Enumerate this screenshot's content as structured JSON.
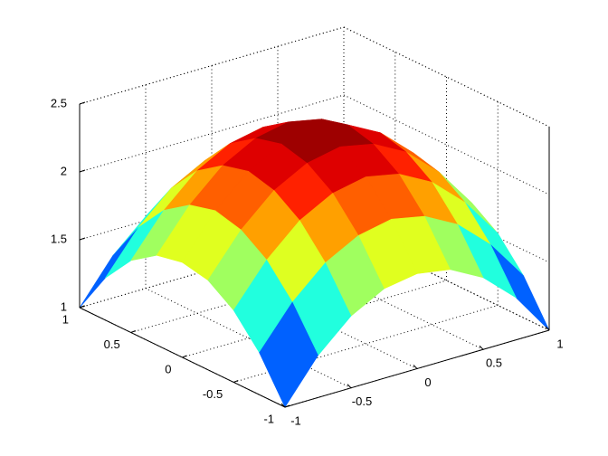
{
  "chart_data": {
    "type": "surface",
    "x": [
      -1,
      -0.75,
      -0.5,
      -0.25,
      0,
      0.25,
      0.5,
      0.75,
      1
    ],
    "y": [
      -1,
      -0.75,
      -0.5,
      -0.25,
      0,
      0.25,
      0.5,
      0.75,
      1
    ],
    "z": [
      [
        1.0,
        1.31,
        1.53,
        1.66,
        1.7,
        1.66,
        1.53,
        1.31,
        1.0
      ],
      [
        1.31,
        1.61,
        1.83,
        1.96,
        2.01,
        1.96,
        1.83,
        1.61,
        1.31
      ],
      [
        1.53,
        1.83,
        2.05,
        2.18,
        2.23,
        2.18,
        2.05,
        1.83,
        1.53
      ],
      [
        1.66,
        1.96,
        2.18,
        2.31,
        2.36,
        2.31,
        2.18,
        1.96,
        1.66
      ],
      [
        1.7,
        2.01,
        2.23,
        2.36,
        2.4,
        2.36,
        2.23,
        2.01,
        1.7
      ],
      [
        1.66,
        1.96,
        2.18,
        2.31,
        2.36,
        2.31,
        2.18,
        1.96,
        1.66
      ],
      [
        1.53,
        1.83,
        2.05,
        2.18,
        2.23,
        2.18,
        2.05,
        1.83,
        1.53
      ],
      [
        1.31,
        1.61,
        1.83,
        1.96,
        2.01,
        1.96,
        1.83,
        1.61,
        1.31
      ],
      [
        1.0,
        1.31,
        1.53,
        1.66,
        1.7,
        1.66,
        1.53,
        1.31,
        1.0
      ]
    ],
    "colormap": "jet",
    "xlim": [
      -1,
      1
    ],
    "xticks": [
      -1,
      -0.5,
      0,
      0.5,
      1
    ],
    "ylim": [
      -1,
      1
    ],
    "yticks": [
      -1,
      -0.5,
      0,
      0.5,
      1
    ],
    "zlim": [
      1,
      2.5
    ],
    "zticks": [
      1,
      1.5,
      2,
      2.5
    ],
    "grid": true
  }
}
